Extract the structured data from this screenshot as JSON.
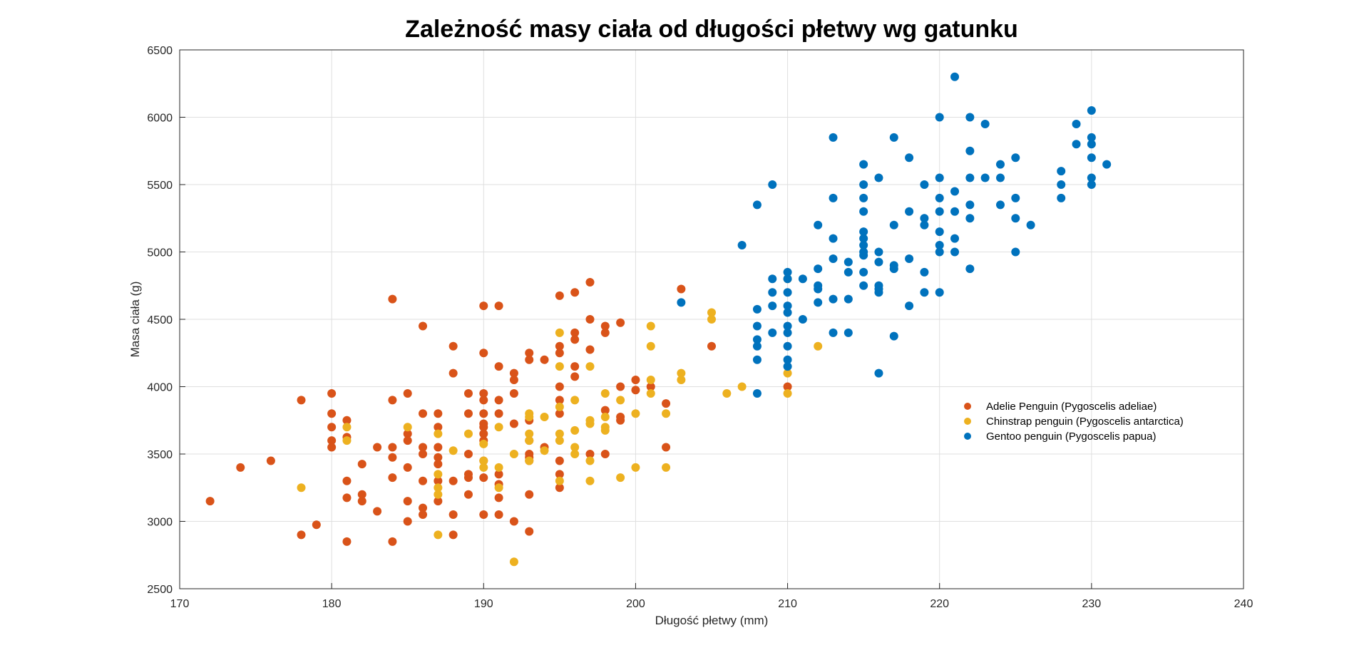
{
  "chart_data": {
    "type": "scatter",
    "title": "Zależność masy ciała od długości płetwy wg gatunku",
    "xlabel": "Długość płetwy (mm)",
    "ylabel": "Masa ciała (g)",
    "xlim": [
      170,
      240
    ],
    "ylim": [
      2500,
      6500
    ],
    "xticks": [
      170,
      180,
      190,
      200,
      210,
      220,
      230,
      240
    ],
    "yticks": [
      2500,
      3000,
      3500,
      4000,
      4500,
      5000,
      5500,
      6000,
      6500
    ],
    "grid": true,
    "legend_position": "right-middle",
    "series": [
      {
        "name": "Adelie Penguin (Pygoscelis adeliae)",
        "color": "#D95319",
        "points": [
          [
            172,
            3150
          ],
          [
            174,
            3400
          ],
          [
            176,
            3450
          ],
          [
            178,
            3900
          ],
          [
            178,
            2900
          ],
          [
            179,
            2975
          ],
          [
            180,
            3950
          ],
          [
            180,
            3800
          ],
          [
            180,
            3700
          ],
          [
            180,
            3600
          ],
          [
            180,
            3550
          ],
          [
            181,
            3750
          ],
          [
            181,
            3625
          ],
          [
            181,
            3300
          ],
          [
            181,
            3175
          ],
          [
            181,
            2850
          ],
          [
            182,
            3425
          ],
          [
            182,
            3200
          ],
          [
            182,
            3150
          ],
          [
            183,
            3550
          ],
          [
            183,
            3075
          ],
          [
            184,
            4650
          ],
          [
            184,
            3900
          ],
          [
            184,
            3550
          ],
          [
            184,
            3475
          ],
          [
            184,
            3325
          ],
          [
            184,
            2850
          ],
          [
            185,
            3950
          ],
          [
            185,
            3650
          ],
          [
            185,
            3600
          ],
          [
            185,
            3400
          ],
          [
            185,
            3150
          ],
          [
            185,
            3000
          ],
          [
            186,
            4450
          ],
          [
            186,
            3800
          ],
          [
            186,
            3550
          ],
          [
            186,
            3500
          ],
          [
            186,
            3300
          ],
          [
            186,
            3100
          ],
          [
            186,
            3050
          ],
          [
            187,
            3800
          ],
          [
            187,
            3700
          ],
          [
            187,
            3550
          ],
          [
            187,
            3475
          ],
          [
            187,
            3425
          ],
          [
            187,
            3300
          ],
          [
            187,
            3150
          ],
          [
            188,
            4300
          ],
          [
            188,
            4100
          ],
          [
            188,
            3300
          ],
          [
            188,
            3050
          ],
          [
            188,
            2900
          ],
          [
            189,
            3950
          ],
          [
            189,
            3800
          ],
          [
            189,
            3500
          ],
          [
            189,
            3350
          ],
          [
            189,
            3325
          ],
          [
            189,
            3200
          ],
          [
            190,
            4600
          ],
          [
            190,
            4250
          ],
          [
            190,
            3950
          ],
          [
            190,
            3900
          ],
          [
            190,
            3800
          ],
          [
            190,
            3725
          ],
          [
            190,
            3700
          ],
          [
            190,
            3650
          ],
          [
            190,
            3600
          ],
          [
            190,
            3450
          ],
          [
            190,
            3325
          ],
          [
            190,
            3050
          ],
          [
            191,
            4600
          ],
          [
            191,
            4150
          ],
          [
            191,
            3900
          ],
          [
            191,
            3800
          ],
          [
            191,
            3350
          ],
          [
            191,
            3275
          ],
          [
            191,
            3175
          ],
          [
            191,
            3050
          ],
          [
            192,
            4100
          ],
          [
            192,
            4050
          ],
          [
            192,
            3950
          ],
          [
            192,
            3725
          ],
          [
            192,
            3000
          ],
          [
            193,
            4250
          ],
          [
            193,
            4200
          ],
          [
            193,
            3750
          ],
          [
            193,
            3600
          ],
          [
            193,
            3500
          ],
          [
            193,
            3475
          ],
          [
            193,
            3450
          ],
          [
            193,
            3200
          ],
          [
            193,
            2925
          ],
          [
            194,
            4200
          ],
          [
            194,
            3550
          ],
          [
            195,
            4675
          ],
          [
            195,
            4300
          ],
          [
            195,
            4250
          ],
          [
            195,
            4000
          ],
          [
            195,
            3900
          ],
          [
            195,
            3800
          ],
          [
            195,
            3450
          ],
          [
            195,
            3350
          ],
          [
            195,
            3250
          ],
          [
            196,
            4700
          ],
          [
            196,
            4400
          ],
          [
            196,
            4350
          ],
          [
            196,
            4150
          ],
          [
            196,
            4075
          ],
          [
            197,
            4775
          ],
          [
            197,
            4500
          ],
          [
            197,
            4275
          ],
          [
            197,
            3500
          ],
          [
            198,
            4450
          ],
          [
            198,
            4400
          ],
          [
            198,
            3825
          ],
          [
            198,
            3500
          ],
          [
            199,
            4475
          ],
          [
            199,
            4000
          ],
          [
            199,
            3775
          ],
          [
            199,
            3750
          ],
          [
            200,
            4050
          ],
          [
            200,
            3975
          ],
          [
            201,
            4000
          ],
          [
            202,
            3875
          ],
          [
            202,
            3550
          ],
          [
            203,
            4725
          ],
          [
            205,
            4300
          ],
          [
            210,
            4000
          ]
        ]
      },
      {
        "name": "Chinstrap penguin (Pygoscelis antarctica)",
        "color": "#EDB120",
        "points": [
          [
            178,
            3250
          ],
          [
            181,
            3700
          ],
          [
            181,
            3600
          ],
          [
            185,
            3700
          ],
          [
            187,
            3650
          ],
          [
            187,
            3350
          ],
          [
            187,
            3250
          ],
          [
            187,
            3200
          ],
          [
            187,
            2900
          ],
          [
            188,
            3525
          ],
          [
            189,
            3650
          ],
          [
            190,
            3575
          ],
          [
            190,
            3450
          ],
          [
            190,
            3400
          ],
          [
            191,
            3700
          ],
          [
            191,
            3400
          ],
          [
            191,
            3250
          ],
          [
            192,
            3500
          ],
          [
            192,
            2700
          ],
          [
            193,
            3800
          ],
          [
            193,
            3775
          ],
          [
            193,
            3650
          ],
          [
            193,
            3600
          ],
          [
            193,
            3450
          ],
          [
            194,
            3775
          ],
          [
            194,
            3525
          ],
          [
            195,
            4400
          ],
          [
            195,
            4150
          ],
          [
            195,
            3850
          ],
          [
            195,
            3650
          ],
          [
            195,
            3600
          ],
          [
            195,
            3300
          ],
          [
            196,
            3900
          ],
          [
            196,
            3675
          ],
          [
            196,
            3550
          ],
          [
            196,
            3500
          ],
          [
            197,
            4150
          ],
          [
            197,
            3750
          ],
          [
            197,
            3725
          ],
          [
            197,
            3450
          ],
          [
            197,
            3300
          ],
          [
            198,
            3950
          ],
          [
            198,
            3775
          ],
          [
            198,
            3700
          ],
          [
            198,
            3675
          ],
          [
            199,
            3900
          ],
          [
            199,
            3325
          ],
          [
            200,
            3800
          ],
          [
            200,
            3400
          ],
          [
            201,
            4450
          ],
          [
            201,
            4300
          ],
          [
            201,
            4050
          ],
          [
            201,
            3950
          ],
          [
            202,
            3800
          ],
          [
            202,
            3400
          ],
          [
            203,
            4100
          ],
          [
            203,
            4050
          ],
          [
            205,
            4550
          ],
          [
            205,
            4500
          ],
          [
            206,
            3950
          ],
          [
            207,
            4000
          ],
          [
            210,
            4800
          ],
          [
            210,
            4100
          ],
          [
            210,
            3950
          ],
          [
            212,
            4300
          ]
        ]
      },
      {
        "name": "Gentoo penguin (Pygoscelis papua)",
        "color": "#0072BD",
        "points": [
          [
            203,
            4625
          ],
          [
            207,
            5050
          ],
          [
            208,
            5350
          ],
          [
            208,
            4575
          ],
          [
            208,
            4450
          ],
          [
            208,
            4350
          ],
          [
            208,
            4300
          ],
          [
            208,
            4200
          ],
          [
            208,
            3950
          ],
          [
            209,
            5500
          ],
          [
            209,
            4800
          ],
          [
            209,
            4700
          ],
          [
            209,
            4600
          ],
          [
            209,
            4400
          ],
          [
            210,
            4850
          ],
          [
            210,
            4800
          ],
          [
            210,
            4700
          ],
          [
            210,
            4600
          ],
          [
            210,
            4550
          ],
          [
            210,
            4450
          ],
          [
            210,
            4400
          ],
          [
            210,
            4300
          ],
          [
            210,
            4200
          ],
          [
            210,
            4150
          ],
          [
            211,
            4800
          ],
          [
            211,
            4500
          ],
          [
            212,
            5200
          ],
          [
            212,
            4875
          ],
          [
            212,
            4750
          ],
          [
            212,
            4725
          ],
          [
            212,
            4625
          ],
          [
            213,
            5850
          ],
          [
            213,
            5400
          ],
          [
            213,
            5100
          ],
          [
            213,
            4950
          ],
          [
            213,
            4650
          ],
          [
            213,
            4400
          ],
          [
            214,
            4925
          ],
          [
            214,
            4850
          ],
          [
            214,
            4650
          ],
          [
            214,
            4400
          ],
          [
            215,
            5650
          ],
          [
            215,
            5500
          ],
          [
            215,
            5400
          ],
          [
            215,
            5300
          ],
          [
            215,
            5150
          ],
          [
            215,
            5100
          ],
          [
            215,
            5050
          ],
          [
            215,
            5000
          ],
          [
            215,
            4975
          ],
          [
            215,
            4850
          ],
          [
            215,
            4750
          ],
          [
            216,
            5550
          ],
          [
            216,
            5000
          ],
          [
            216,
            4925
          ],
          [
            216,
            4750
          ],
          [
            216,
            4725
          ],
          [
            216,
            4700
          ],
          [
            216,
            4100
          ],
          [
            217,
            5850
          ],
          [
            217,
            5200
          ],
          [
            217,
            4900
          ],
          [
            217,
            4875
          ],
          [
            217,
            4375
          ],
          [
            218,
            5700
          ],
          [
            218,
            5300
          ],
          [
            218,
            4950
          ],
          [
            218,
            4600
          ],
          [
            219,
            5500
          ],
          [
            219,
            5250
          ],
          [
            219,
            5200
          ],
          [
            219,
            4850
          ],
          [
            219,
            4700
          ],
          [
            220,
            6000
          ],
          [
            220,
            5550
          ],
          [
            220,
            5400
          ],
          [
            220,
            5300
          ],
          [
            220,
            5150
          ],
          [
            220,
            5050
          ],
          [
            220,
            5000
          ],
          [
            220,
            4700
          ],
          [
            221,
            6300
          ],
          [
            221,
            5450
          ],
          [
            221,
            5300
          ],
          [
            221,
            5100
          ],
          [
            221,
            5000
          ],
          [
            222,
            6000
          ],
          [
            222,
            5750
          ],
          [
            222,
            5550
          ],
          [
            222,
            5350
          ],
          [
            222,
            5250
          ],
          [
            222,
            4875
          ],
          [
            223,
            5950
          ],
          [
            223,
            5550
          ],
          [
            224,
            5650
          ],
          [
            224,
            5550
          ],
          [
            224,
            5350
          ],
          [
            225,
            5700
          ],
          [
            225,
            5400
          ],
          [
            225,
            5250
          ],
          [
            225,
            5000
          ],
          [
            226,
            5200
          ],
          [
            228,
            5600
          ],
          [
            228,
            5500
          ],
          [
            228,
            5400
          ],
          [
            229,
            5950
          ],
          [
            229,
            5800
          ],
          [
            230,
            6050
          ],
          [
            230,
            5850
          ],
          [
            230,
            5800
          ],
          [
            230,
            5700
          ],
          [
            230,
            5550
          ],
          [
            230,
            5500
          ],
          [
            231,
            5650
          ]
        ]
      }
    ]
  }
}
